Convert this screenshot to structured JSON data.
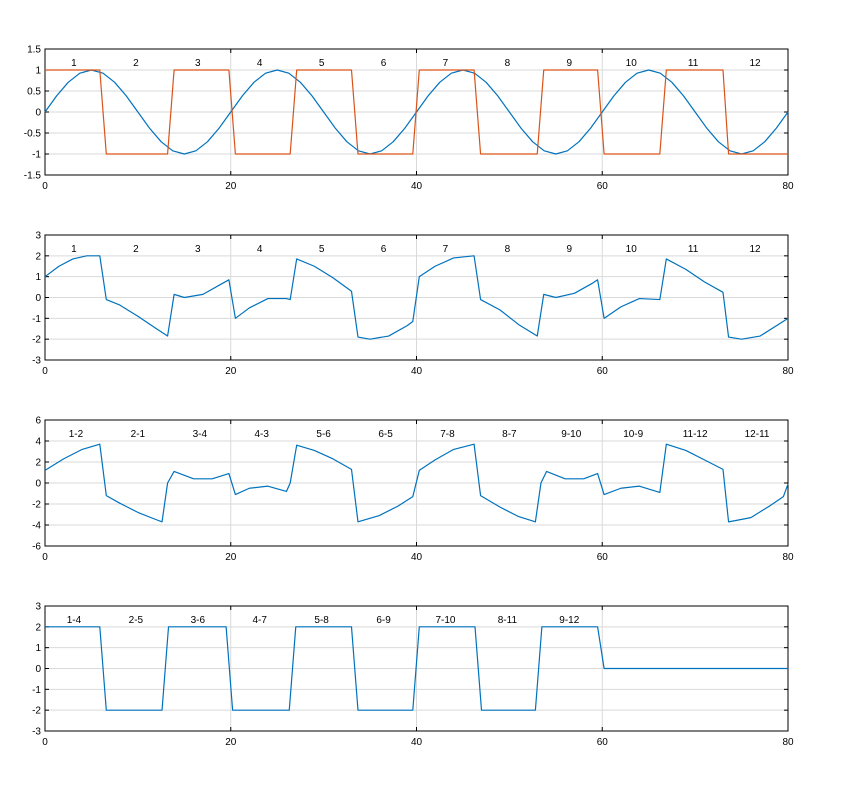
{
  "colors": {
    "background": "#ffffff",
    "axes": "#000000",
    "grid": "#d9d9d9",
    "series_blue": "#0072bd",
    "series_orange": "#d95319"
  },
  "chart_data": [
    {
      "type": "line",
      "xlim": [
        0,
        80
      ],
      "ylim": [
        -1.5,
        1.5
      ],
      "xticks": [
        "0",
        "20",
        "40",
        "60",
        "80"
      ],
      "yticks": [
        "-1.5",
        "-1",
        "-0.5",
        "0",
        "0.5",
        "1",
        "1.5"
      ],
      "grid": true,
      "segment_labels": [
        "1",
        "2",
        "3",
        "4",
        "5",
        "6",
        "7",
        "8",
        "9",
        "10",
        "11",
        "12"
      ],
      "series": [
        {
          "color": "#0072bd",
          "x": [
            0,
            1.25,
            2.5,
            3.75,
            5,
            6.25,
            7.5,
            8.75,
            10,
            11.25,
            12.5,
            13.75,
            15,
            16.25,
            17.5,
            18.75,
            20,
            21.25,
            22.5,
            23.75,
            25,
            26.25,
            27.5,
            28.75,
            30,
            31.25,
            32.5,
            33.75,
            35,
            36.25,
            37.5,
            38.75,
            40,
            41.25,
            42.5,
            43.75,
            45,
            46.25,
            47.5,
            48.75,
            50,
            51.25,
            52.5,
            53.75,
            55,
            56.25,
            57.5,
            58.75,
            60,
            61.25,
            62.5,
            63.75,
            65,
            66.25,
            67.5,
            68.75,
            70,
            71.25,
            72.5,
            73.75,
            75,
            76.25,
            77.5,
            78.75,
            80
          ],
          "y": [
            0,
            0.383,
            0.707,
            0.924,
            1,
            0.924,
            0.707,
            0.383,
            0,
            -0.383,
            -0.707,
            -0.924,
            -1,
            -0.924,
            -0.707,
            -0.383,
            0,
            0.383,
            0.707,
            0.924,
            1,
            0.924,
            0.707,
            0.383,
            0,
            -0.383,
            -0.707,
            -0.924,
            -1,
            -0.924,
            -0.707,
            -0.383,
            0,
            0.383,
            0.707,
            0.924,
            1,
            0.924,
            0.707,
            0.383,
            0,
            -0.383,
            -0.707,
            -0.924,
            -1,
            -0.924,
            -0.707,
            -0.383,
            0,
            0.383,
            0.707,
            0.924,
            1,
            0.924,
            0.707,
            0.383,
            0,
            -0.383,
            -0.707,
            -0.924,
            -1,
            -0.924,
            -0.707,
            -0.383,
            0
          ]
        },
        {
          "color": "#d95319",
          "x": [
            0,
            5.9,
            6.6,
            13.2,
            13.9,
            19.8,
            20.5,
            26.4,
            27.1,
            33.0,
            33.7,
            39.6,
            40.3,
            46.2,
            46.9,
            53.0,
            53.7,
            59.5,
            60.2,
            66.2,
            66.9,
            73.0,
            73.6,
            80
          ],
          "y": [
            1,
            1,
            -1,
            -1,
            1,
            1,
            -1,
            -1,
            1,
            1,
            -1,
            -1,
            1,
            1,
            -1,
            -1,
            1,
            1,
            -1,
            -1,
            1,
            1,
            -1,
            -1
          ]
        }
      ]
    },
    {
      "type": "line",
      "xlim": [
        0,
        80
      ],
      "ylim": [
        -3,
        3
      ],
      "xticks": [
        "0",
        "20",
        "40",
        "60",
        "80"
      ],
      "yticks": [
        "-3",
        "-2",
        "-1",
        "0",
        "1",
        "2",
        "3"
      ],
      "grid": true,
      "segment_labels": [
        "1",
        "2",
        "3",
        "4",
        "5",
        "6",
        "7",
        "8",
        "9",
        "10",
        "11",
        "12"
      ],
      "series": [
        {
          "color": "#0072bd",
          "x": [
            0,
            1.5,
            3,
            4.5,
            5.9,
            6.6,
            8,
            10,
            12,
            13.2,
            13.9,
            15,
            17,
            19,
            19.8,
            20.5,
            22,
            24,
            26,
            26.4,
            27.1,
            29,
            31,
            33,
            33.7,
            35,
            37,
            39,
            39.6,
            40.3,
            42,
            44,
            46.2,
            46.9,
            49,
            51,
            53,
            53.7,
            55,
            57,
            59,
            59.5,
            60.2,
            62,
            64,
            66.2,
            66.9,
            69,
            71,
            73,
            73.6,
            75,
            77,
            80
          ],
          "y": [
            1.0,
            1.5,
            1.85,
            2.0,
            2.0,
            -0.1,
            -0.35,
            -0.9,
            -1.5,
            -1.85,
            0.15,
            0.0,
            0.15,
            0.65,
            0.85,
            -1.0,
            -0.5,
            -0.05,
            -0.05,
            -0.1,
            1.85,
            1.5,
            0.95,
            0.3,
            -1.9,
            -2.0,
            -1.85,
            -1.35,
            -1.15,
            1.0,
            1.5,
            1.9,
            2.0,
            -0.1,
            -0.6,
            -1.3,
            -1.85,
            0.15,
            0.0,
            0.2,
            0.7,
            0.85,
            -1.0,
            -0.45,
            -0.05,
            -0.1,
            1.85,
            1.35,
            0.75,
            0.25,
            -1.9,
            -2.0,
            -1.85,
            -1.0
          ]
        }
      ]
    },
    {
      "type": "line",
      "xlim": [
        0,
        80
      ],
      "ylim": [
        -6,
        6
      ],
      "xticks": [
        "0",
        "20",
        "40",
        "60",
        "80"
      ],
      "yticks": [
        "-6",
        "-4",
        "-2",
        "0",
        "2",
        "4",
        "6"
      ],
      "grid": true,
      "segment_labels": [
        "1-2",
        "2-1",
        "3-4",
        "4-3",
        "5-6",
        "6-5",
        "7-8",
        "8-7",
        "9-10",
        "10-9",
        "11-12",
        "12-11"
      ],
      "series": [
        {
          "color": "#0072bd",
          "x": [
            0,
            2,
            4,
            5.9,
            6.6,
            8,
            10,
            12,
            12.6,
            13.2,
            13.9,
            16,
            18,
            19.8,
            20.5,
            22,
            24,
            26,
            26.4,
            27.1,
            29,
            31,
            33,
            33.7,
            36,
            38,
            39.6,
            40.3,
            42,
            44,
            46.2,
            46.9,
            49,
            51,
            52.8,
            53.4,
            54,
            56,
            58,
            59.5,
            60.2,
            62,
            64,
            66.2,
            66.9,
            69,
            71,
            73,
            73.6,
            76,
            78,
            79.5,
            80
          ],
          "y": [
            1.2,
            2.3,
            3.2,
            3.7,
            -1.2,
            -1.9,
            -2.8,
            -3.5,
            -3.7,
            0.0,
            1.1,
            0.4,
            0.4,
            0.9,
            -1.1,
            -0.5,
            -0.3,
            -0.8,
            0.0,
            3.6,
            3.1,
            2.3,
            1.3,
            -3.7,
            -3.1,
            -2.2,
            -1.3,
            1.2,
            2.2,
            3.2,
            3.7,
            -1.2,
            -2.3,
            -3.2,
            -3.7,
            0.0,
            1.1,
            0.4,
            0.4,
            0.9,
            -1.1,
            -0.5,
            -0.3,
            -0.9,
            3.7,
            3.1,
            2.2,
            1.3,
            -3.7,
            -3.3,
            -2.2,
            -1.3,
            -0.1
          ]
        }
      ]
    },
    {
      "type": "line",
      "xlim": [
        0,
        80
      ],
      "ylim": [
        -3,
        3
      ],
      "xticks": [
        "0",
        "20",
        "40",
        "60",
        "80"
      ],
      "yticks": [
        "-3",
        "-2",
        "-1",
        "0",
        "1",
        "2",
        "3"
      ],
      "grid": true,
      "segment_labels": [
        "1-4",
        "2-5",
        "3-6",
        "4-7",
        "5-8",
        "6-9",
        "7-10",
        "8-11",
        "9-12"
      ],
      "series": [
        {
          "color": "#0072bd",
          "x": [
            0,
            5.9,
            6.6,
            12.6,
            13.3,
            19.5,
            20.2,
            26.3,
            27.0,
            33.0,
            33.7,
            39.6,
            40.3,
            46.3,
            47.0,
            52.8,
            53.5,
            59.5,
            60.2,
            80
          ],
          "y": [
            2,
            2,
            -2,
            -2,
            2,
            2,
            -2,
            -2,
            2,
            2,
            -2,
            -2,
            2,
            2,
            -2,
            -2,
            2,
            2,
            0,
            0
          ]
        }
      ]
    }
  ]
}
